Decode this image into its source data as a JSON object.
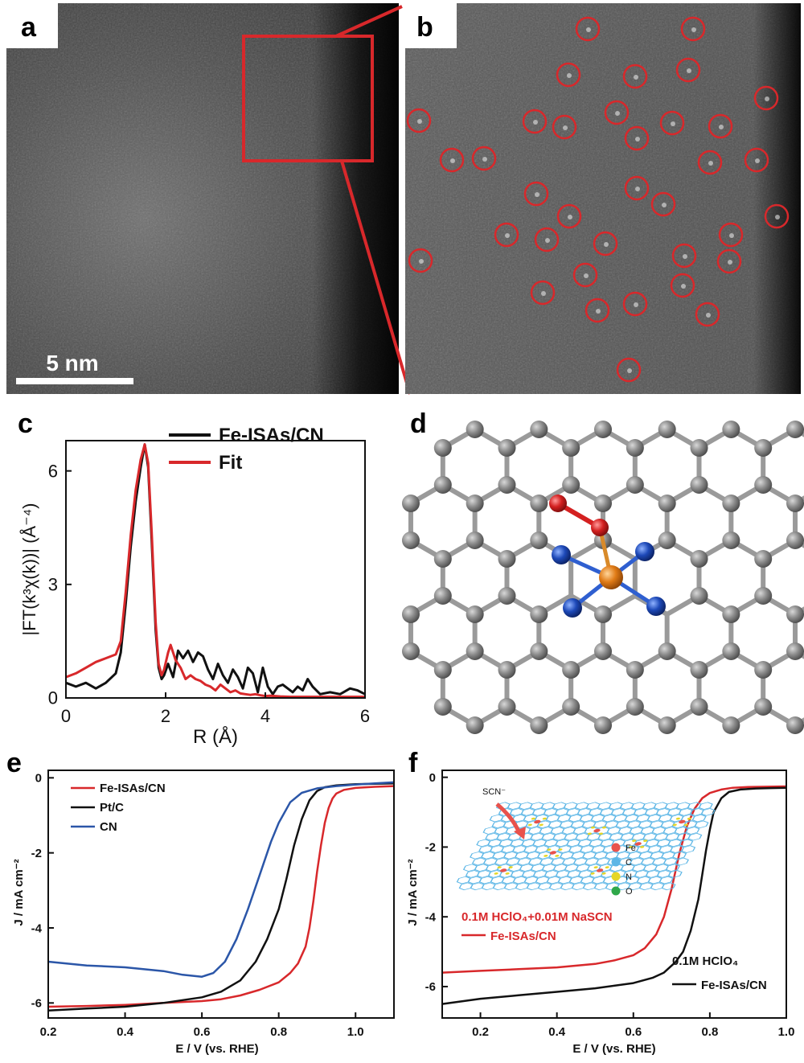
{
  "panels": {
    "a": {
      "label": "a",
      "scalebar": "5 nm"
    },
    "b": {
      "label": "b",
      "marked_site_count": 44
    },
    "c": {
      "label": "c"
    },
    "d": {
      "label": "d"
    },
    "e": {
      "label": "e"
    },
    "f": {
      "label": "f"
    }
  },
  "colors": {
    "red": "#d8282b",
    "black": "#111111",
    "blue": "#2b56a8",
    "carbon": "#8c8c8c",
    "nitrogen": "#1d49b8",
    "iron": "#e07b16",
    "oxygen": "#d42020"
  },
  "model_d": {
    "atoms": [
      "C",
      "N",
      "Fe",
      "O"
    ],
    "n_count": 4,
    "fe_count": 1,
    "o_count": 2
  },
  "inset_f": {
    "label": "SCN⁻",
    "legend": [
      "Fe",
      "C",
      "N",
      "O"
    ],
    "legend_colors": [
      "#e8524c",
      "#5cb6e6",
      "#e5d626",
      "#2fa84a"
    ]
  },
  "chart_data": [
    {
      "type": "line",
      "panel": "c",
      "xlabel": "R (Å)",
      "ylabel": "|FT(k³χ(k))| (Å⁻⁴)",
      "xlim": [
        0,
        6
      ],
      "ylim": [
        0,
        6.8
      ],
      "xticks": [
        0,
        2,
        4,
        6
      ],
      "yticks": [
        0,
        3,
        6
      ],
      "legend_position": "top-right",
      "series": [
        {
          "name": "Fe-ISAs/CN",
          "color": "#111111",
          "x": [
            0.0,
            0.2,
            0.4,
            0.6,
            0.8,
            1.0,
            1.1,
            1.2,
            1.3,
            1.4,
            1.5,
            1.58,
            1.65,
            1.72,
            1.8,
            1.86,
            1.92,
            1.97,
            2.05,
            2.15,
            2.25,
            2.35,
            2.45,
            2.55,
            2.65,
            2.75,
            2.85,
            2.95,
            3.05,
            3.15,
            3.25,
            3.35,
            3.45,
            3.55,
            3.65,
            3.75,
            3.85,
            3.95,
            4.05,
            4.15,
            4.25,
            4.35,
            4.45,
            4.55,
            4.65,
            4.75,
            4.85,
            4.95,
            5.1,
            5.3,
            5.5,
            5.7,
            5.85,
            6.0
          ],
          "y": [
            0.4,
            0.3,
            0.4,
            0.25,
            0.4,
            0.65,
            1.2,
            2.5,
            4.0,
            5.2,
            6.1,
            6.7,
            6.1,
            4.2,
            1.8,
            0.8,
            0.5,
            0.6,
            0.9,
            0.55,
            1.25,
            1.05,
            1.25,
            0.95,
            1.2,
            1.1,
            0.75,
            0.5,
            0.9,
            0.6,
            0.4,
            0.75,
            0.55,
            0.25,
            0.8,
            0.65,
            0.15,
            0.8,
            0.3,
            0.1,
            0.3,
            0.35,
            0.25,
            0.15,
            0.3,
            0.2,
            0.5,
            0.3,
            0.1,
            0.15,
            0.1,
            0.25,
            0.2,
            0.1
          ]
        },
        {
          "name": "Fit",
          "color": "#d8282b",
          "x": [
            0.0,
            0.2,
            0.4,
            0.6,
            0.8,
            1.0,
            1.1,
            1.2,
            1.3,
            1.4,
            1.5,
            1.58,
            1.65,
            1.72,
            1.8,
            1.86,
            1.92,
            1.97,
            2.05,
            2.1,
            2.2,
            2.3,
            2.4,
            2.5,
            2.6,
            2.7,
            2.8,
            2.9,
            3.0,
            3.1,
            3.2,
            3.3,
            3.4,
            3.5,
            3.6,
            3.7,
            3.8,
            3.9,
            4.0,
            4.1,
            4.3,
            4.5,
            4.7,
            4.9,
            5.1,
            5.3,
            5.5,
            5.7,
            5.9,
            6.0
          ],
          "y": [
            0.55,
            0.65,
            0.8,
            0.95,
            1.05,
            1.15,
            1.5,
            2.8,
            4.3,
            5.5,
            6.3,
            6.7,
            6.2,
            4.4,
            2.0,
            0.9,
            0.6,
            0.75,
            1.2,
            1.4,
            1.0,
            0.8,
            0.5,
            0.6,
            0.5,
            0.45,
            0.35,
            0.3,
            0.2,
            0.35,
            0.25,
            0.15,
            0.2,
            0.12,
            0.1,
            0.08,
            0.1,
            0.07,
            0.05,
            0.06,
            0.04,
            0.03,
            0.03,
            0.03,
            0.03,
            0.03,
            0.03,
            0.03,
            0.03,
            0.03
          ]
        }
      ]
    },
    {
      "type": "line",
      "panel": "e",
      "xlabel": "E / V (vs. RHE)",
      "ylabel": "J / mA cm⁻²",
      "xlim": [
        0.2,
        1.1
      ],
      "ylim": [
        -6.4,
        0.2
      ],
      "xticks": [
        0.2,
        0.4,
        0.6,
        0.8,
        1.0
      ],
      "yticks": [
        0,
        -2,
        -4,
        -6
      ],
      "legend_position": "top-left",
      "series": [
        {
          "name": "Fe-ISAs/CN",
          "color": "#d8282b",
          "x": [
            0.2,
            0.3,
            0.4,
            0.5,
            0.6,
            0.65,
            0.7,
            0.75,
            0.8,
            0.83,
            0.85,
            0.87,
            0.88,
            0.89,
            0.9,
            0.91,
            0.92,
            0.93,
            0.94,
            0.95,
            0.97,
            1.0,
            1.05,
            1.1
          ],
          "y": [
            -6.1,
            -6.08,
            -6.05,
            -6.0,
            -5.95,
            -5.9,
            -5.8,
            -5.65,
            -5.45,
            -5.2,
            -4.95,
            -4.5,
            -4.0,
            -3.3,
            -2.5,
            -1.8,
            -1.2,
            -0.8,
            -0.55,
            -0.42,
            -0.32,
            -0.27,
            -0.24,
            -0.22
          ]
        },
        {
          "name": "Pt/C",
          "color": "#111111",
          "x": [
            0.2,
            0.3,
            0.4,
            0.5,
            0.6,
            0.65,
            0.7,
            0.74,
            0.77,
            0.8,
            0.82,
            0.84,
            0.86,
            0.88,
            0.9,
            0.92,
            0.95,
            1.0,
            1.05,
            1.1
          ],
          "y": [
            -6.2,
            -6.15,
            -6.1,
            -6.0,
            -5.85,
            -5.7,
            -5.4,
            -4.9,
            -4.3,
            -3.5,
            -2.7,
            -1.8,
            -1.1,
            -0.6,
            -0.35,
            -0.25,
            -0.2,
            -0.17,
            -0.16,
            -0.15
          ]
        },
        {
          "name": "CN",
          "color": "#2b56a8",
          "x": [
            0.2,
            0.3,
            0.4,
            0.5,
            0.55,
            0.6,
            0.63,
            0.66,
            0.69,
            0.72,
            0.75,
            0.78,
            0.8,
            0.83,
            0.86,
            0.9,
            0.95,
            1.0,
            1.05,
            1.1
          ],
          "y": [
            -4.9,
            -5.0,
            -5.05,
            -5.15,
            -5.25,
            -5.3,
            -5.2,
            -4.9,
            -4.3,
            -3.5,
            -2.6,
            -1.7,
            -1.2,
            -0.65,
            -0.4,
            -0.28,
            -0.22,
            -0.18,
            -0.15,
            -0.12
          ]
        }
      ]
    },
    {
      "type": "line",
      "panel": "f",
      "xlabel": "E / V (vs. RHE)",
      "ylabel": "J / mA cm⁻²",
      "xlim": [
        0.1,
        1.0
      ],
      "ylim": [
        -6.9,
        0.2
      ],
      "xticks": [
        0.2,
        0.4,
        0.6,
        0.8,
        1.0
      ],
      "yticks": [
        0,
        -2,
        -4,
        -6
      ],
      "annotations": [
        "0.1M HClO₄+0.01M NaSCN",
        "0.1M HClO₄"
      ],
      "series": [
        {
          "name": "Fe-ISAs/CN",
          "condition": "0.1M HClO₄+0.01M NaSCN",
          "color": "#d8282b",
          "x": [
            0.1,
            0.2,
            0.3,
            0.4,
            0.5,
            0.55,
            0.6,
            0.63,
            0.66,
            0.68,
            0.7,
            0.72,
            0.74,
            0.76,
            0.78,
            0.8,
            0.83,
            0.86,
            0.9,
            0.95,
            1.0
          ],
          "y": [
            -5.6,
            -5.55,
            -5.5,
            -5.45,
            -5.35,
            -5.25,
            -5.1,
            -4.9,
            -4.5,
            -4.0,
            -3.2,
            -2.2,
            -1.4,
            -0.9,
            -0.6,
            -0.45,
            -0.35,
            -0.3,
            -0.28,
            -0.27,
            -0.26
          ]
        },
        {
          "name": "Fe-ISAs/CN",
          "condition": "0.1M HClO₄",
          "color": "#111111",
          "x": [
            0.1,
            0.2,
            0.3,
            0.4,
            0.5,
            0.6,
            0.65,
            0.68,
            0.71,
            0.73,
            0.75,
            0.77,
            0.78,
            0.79,
            0.8,
            0.81,
            0.83,
            0.85,
            0.88,
            0.92,
            0.96,
            1.0
          ],
          "y": [
            -6.5,
            -6.35,
            -6.25,
            -6.15,
            -6.05,
            -5.9,
            -5.75,
            -5.6,
            -5.3,
            -5.0,
            -4.4,
            -3.5,
            -2.8,
            -2.1,
            -1.5,
            -1.0,
            -0.6,
            -0.42,
            -0.35,
            -0.32,
            -0.31,
            -0.3
          ]
        }
      ]
    }
  ],
  "legend_c": [
    "Fe-ISAs/CN",
    "Fit"
  ],
  "legend_e": [
    "Fe-ISAs/CN",
    "Pt/C",
    "CN"
  ],
  "legend_f": [
    "Fe-ISAs/CN",
    "Fe-ISAs/CN"
  ]
}
